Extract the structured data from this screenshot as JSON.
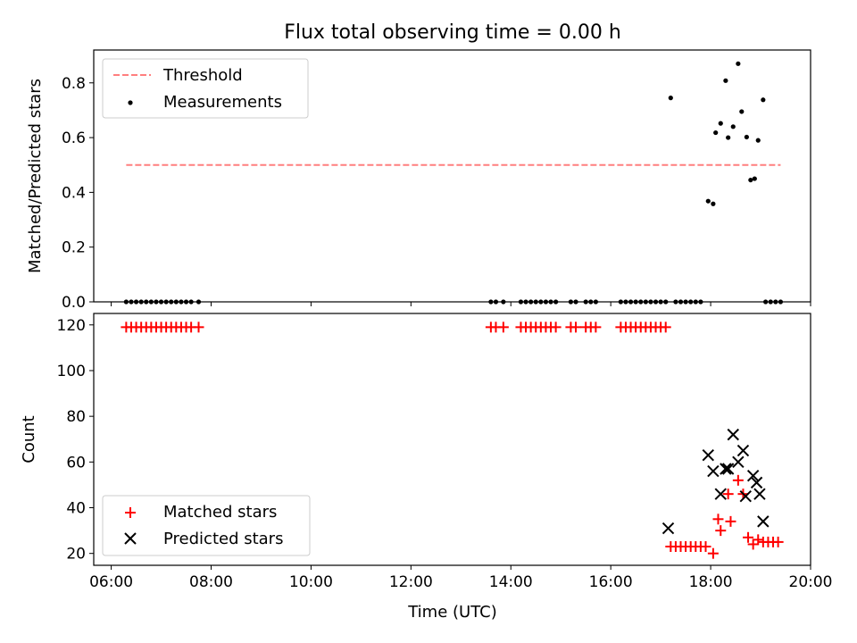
{
  "title": "Flux total observing time = 0.00 h",
  "chart_data": [
    {
      "type": "scatter",
      "panel": "top",
      "ylabel": "Matched/Predicted stars",
      "xlim": [
        5.65,
        20.0
      ],
      "ylim": [
        0.0,
        0.92
      ],
      "y_ticks": [
        0.0,
        0.2,
        0.4,
        0.6,
        0.8
      ],
      "y_tick_labels": [
        "0.0",
        "0.2",
        "0.4",
        "0.6",
        "0.8"
      ],
      "legend_placement": "upper-left",
      "threshold": {
        "name": "Threshold",
        "color": "#ff7f7f",
        "style": "dashed",
        "x_range": [
          6.3,
          19.4
        ],
        "y": 0.5
      },
      "series": [
        {
          "name": "Measurements",
          "color": "#000000",
          "marker": "dot",
          "x": [
            6.3,
            6.4,
            6.5,
            6.6,
            6.7,
            6.8,
            6.9,
            7.0,
            7.1,
            7.2,
            7.3,
            7.4,
            7.5,
            7.6,
            7.75,
            13.6,
            13.7,
            13.85,
            14.2,
            14.3,
            14.4,
            14.5,
            14.6,
            14.7,
            14.8,
            14.9,
            15.2,
            15.3,
            15.5,
            15.6,
            15.7,
            16.2,
            16.3,
            16.4,
            16.5,
            16.6,
            16.7,
            16.8,
            16.9,
            17.0,
            17.1,
            17.3,
            17.4,
            17.5,
            17.6,
            17.7,
            17.8,
            17.2,
            17.95,
            18.05,
            18.1,
            18.2,
            18.3,
            18.35,
            18.45,
            18.55,
            18.62,
            18.72,
            18.8,
            18.88,
            18.95,
            19.05,
            19.1,
            19.2,
            19.3,
            19.4
          ],
          "y": [
            0,
            0,
            0,
            0,
            0,
            0,
            0,
            0,
            0,
            0,
            0,
            0,
            0,
            0,
            0,
            0,
            0,
            0,
            0,
            0,
            0,
            0,
            0,
            0,
            0,
            0,
            0,
            0,
            0,
            0,
            0,
            0,
            0,
            0,
            0,
            0,
            0,
            0,
            0,
            0,
            0,
            0,
            0,
            0,
            0,
            0,
            0,
            0.745,
            0.368,
            0.358,
            0.618,
            0.652,
            0.808,
            0.6,
            0.64,
            0.87,
            0.695,
            0.602,
            0.445,
            0.45,
            0.59,
            0.738,
            0,
            0,
            0,
            0
          ]
        }
      ]
    },
    {
      "type": "scatter",
      "panel": "bottom",
      "xlabel": "Time (UTC)",
      "ylabel": "Count",
      "xlim": [
        5.65,
        20.0
      ],
      "ylim": [
        14.8,
        125.0
      ],
      "x_ticks": [
        6,
        8,
        10,
        12,
        14,
        16,
        18,
        20
      ],
      "x_tick_labels": [
        "06:00",
        "08:00",
        "10:00",
        "12:00",
        "14:00",
        "16:00",
        "18:00",
        "20:00"
      ],
      "y_ticks": [
        20,
        40,
        60,
        80,
        100,
        120
      ],
      "y_tick_labels": [
        "20",
        "40",
        "60",
        "80",
        "100",
        "120"
      ],
      "legend_placement": "lower-left",
      "series": [
        {
          "name": "Matched stars",
          "color": "#ff0000",
          "marker": "plus",
          "x": [
            6.3,
            6.4,
            6.5,
            6.6,
            6.7,
            6.8,
            6.9,
            7.0,
            7.1,
            7.2,
            7.3,
            7.4,
            7.5,
            7.6,
            7.75,
            13.6,
            13.7,
            13.85,
            14.2,
            14.3,
            14.4,
            14.5,
            14.6,
            14.7,
            14.8,
            14.9,
            15.2,
            15.3,
            15.5,
            15.6,
            15.7,
            16.2,
            16.3,
            16.4,
            16.5,
            16.6,
            16.7,
            16.8,
            16.9,
            17.0,
            17.1,
            17.2,
            17.3,
            17.4,
            17.5,
            17.6,
            17.7,
            17.8,
            17.9,
            18.05,
            18.15,
            18.2,
            18.35,
            18.4,
            18.55,
            18.65,
            18.75,
            18.85,
            18.95,
            19.05,
            19.15,
            19.25,
            19.35
          ],
          "y": [
            119,
            119,
            119,
            119,
            119,
            119,
            119,
            119,
            119,
            119,
            119,
            119,
            119,
            119,
            119,
            119,
            119,
            119,
            119,
            119,
            119,
            119,
            119,
            119,
            119,
            119,
            119,
            119,
            119,
            119,
            119,
            119,
            119,
            119,
            119,
            119,
            119,
            119,
            119,
            119,
            119,
            23,
            23,
            23,
            23,
            23,
            23,
            23,
            23,
            20,
            35,
            30,
            46,
            34,
            52,
            46,
            27,
            24,
            26,
            25,
            25,
            25,
            25
          ]
        },
        {
          "name": "Predicted stars",
          "color": "#000000",
          "marker": "x",
          "x": [
            17.15,
            17.95,
            18.05,
            18.2,
            18.3,
            18.35,
            18.45,
            18.55,
            18.65,
            18.7,
            18.85,
            18.92,
            18.98,
            19.05
          ],
          "y": [
            31,
            63,
            56,
            46,
            57,
            57,
            72,
            60,
            65,
            45,
            54,
            51,
            46,
            34
          ]
        }
      ]
    }
  ]
}
